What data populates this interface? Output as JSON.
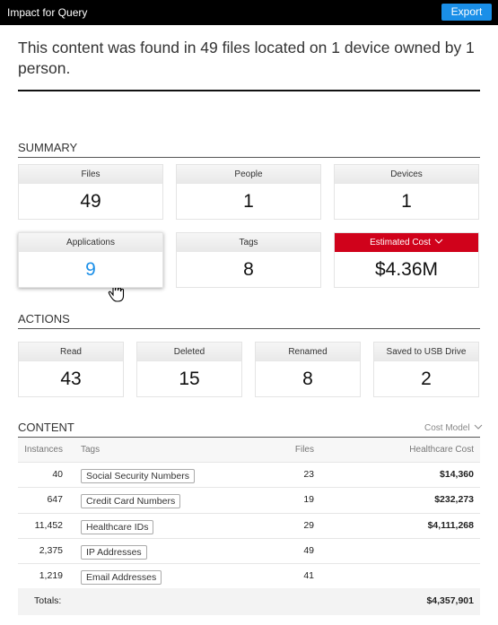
{
  "header": {
    "title": "Impact for Query",
    "button": "Export"
  },
  "headline": "This content was found in 49 files located on 1 device owned by 1 person.",
  "summary": {
    "title": "SUMMARY",
    "cards": [
      {
        "label": "Files",
        "value": "49"
      },
      {
        "label": "People",
        "value": "1"
      },
      {
        "label": "Devices",
        "value": "1"
      },
      {
        "label": "Applications",
        "value": "9"
      },
      {
        "label": "Tags",
        "value": "8"
      },
      {
        "label": "Estimated Cost",
        "value": "$4.36M"
      }
    ]
  },
  "actions": {
    "title": "ACTIONS",
    "cards": [
      {
        "label": "Read",
        "value": "43"
      },
      {
        "label": "Deleted",
        "value": "15"
      },
      {
        "label": "Renamed",
        "value": "8"
      },
      {
        "label": "Saved to USB Drive",
        "value": "2"
      }
    ]
  },
  "content": {
    "title": "CONTENT",
    "cost_model": "Cost Model",
    "columns": [
      "Instances",
      "Tags",
      "Files",
      "Healthcare Cost"
    ],
    "rows": [
      {
        "instances": "40",
        "tag": "Social Security Numbers",
        "files": "23",
        "cost": "$14,360"
      },
      {
        "instances": "647",
        "tag": "Credit Card Numbers",
        "files": "19",
        "cost": "$232,273"
      },
      {
        "instances": "11,452",
        "tag": "Healthcare IDs",
        "files": "29",
        "cost": "$4,111,268"
      },
      {
        "instances": "2,375",
        "tag": "IP Addresses",
        "files": "49"
      },
      {
        "instances": "1,219",
        "tag": "Email Addresses",
        "files": "41"
      }
    ],
    "totals": {
      "label": "Totals:",
      "value": "$4,357,901"
    }
  }
}
